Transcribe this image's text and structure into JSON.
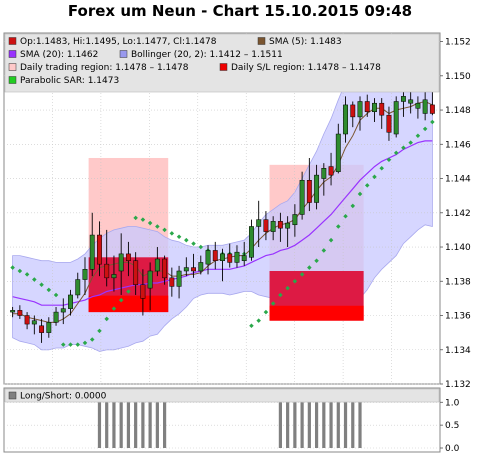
{
  "title": "Forex um Neun - Chart 15.10.2015 09:48",
  "colors": {
    "candle_up": "#2e8b2e",
    "candle_down": "#cc1111",
    "sma5": "#7a5530",
    "sma20": "#9933ff",
    "bollinger_fill": "#c8c8ff",
    "daily_range_fill": "#ffc9c9",
    "sl_region": "#dd1a44",
    "sl_region_low": "#ff0000",
    "sar": "#2aa84a",
    "longshort_bar": "#808080"
  },
  "legend": [
    {
      "label": "Op:1.1483, Hi:1.1495, Lo:1.1477, Cl:1.1478",
      "icon": "candle-swatch",
      "color": "#cc1111"
    },
    {
      "label": "SMA (5): 1.1483",
      "icon": "sma5-swatch",
      "color": "#7a5530"
    },
    {
      "label": "SMA (20): 1.1462",
      "icon": "sma20-swatch",
      "color": "#9933ff"
    },
    {
      "label": "Bollinger (20, 2): 1.1412 – 1.1511",
      "icon": "bollinger-swatch",
      "color": "#9999ee"
    },
    {
      "label": "Daily trading region: 1.1478 – 1.1478",
      "icon": "daily-region-swatch",
      "color": "#ffc9c9"
    },
    {
      "label": "Daily S/L region: 1.1478 – 1.1478",
      "icon": "sl-region-swatch",
      "color": "#ee0000"
    },
    {
      "label": "Parabolic SAR: 1.1473",
      "icon": "sar-swatch",
      "color": "#22cc22"
    }
  ],
  "sub_legend": {
    "label": "Long/Short: 0.0000",
    "icon": "longshort-swatch",
    "color": "#808080"
  },
  "chart_data": [
    {
      "type": "candlestick",
      "ylim": [
        1.132,
        1.1525
      ],
      "y_ticks": [
        "1.132",
        "1.134",
        "1.136",
        "1.138",
        "1.140",
        "1.142",
        "1.144",
        "1.146",
        "1.148",
        "1.150",
        "1.152"
      ],
      "y_tick_values": [
        1.132,
        1.134,
        1.136,
        1.138,
        1.14,
        1.142,
        1.144,
        1.146,
        1.148,
        1.15,
        1.152
      ],
      "candles": [
        [
          1.1362,
          1.1365,
          1.1359,
          1.1363
        ],
        [
          1.1363,
          1.1366,
          1.1358,
          1.136
        ],
        [
          1.136,
          1.1362,
          1.1352,
          1.1355
        ],
        [
          1.1355,
          1.136,
          1.1349,
          1.1357
        ],
        [
          1.1354,
          1.1358,
          1.1344,
          1.135
        ],
        [
          1.135,
          1.1359,
          1.1347,
          1.1356
        ],
        [
          1.1356,
          1.1365,
          1.1354,
          1.1362
        ],
        [
          1.1362,
          1.137,
          1.1355,
          1.1364
        ],
        [
          1.1364,
          1.1375,
          1.136,
          1.1372
        ],
        [
          1.1372,
          1.1385,
          1.137,
          1.1381
        ],
        [
          1.1381,
          1.1394,
          1.1372,
          1.1387
        ],
        [
          1.1387,
          1.142,
          1.1383,
          1.1407
        ],
        [
          1.1407,
          1.1415,
          1.1383,
          1.139
        ],
        [
          1.139,
          1.141,
          1.1377,
          1.1382
        ],
        [
          1.1382,
          1.1395,
          1.1374,
          1.1384
        ],
        [
          1.1386,
          1.1408,
          1.1372,
          1.1396
        ],
        [
          1.1396,
          1.1403,
          1.1383,
          1.1392
        ],
        [
          1.1392,
          1.1397,
          1.1372,
          1.1378
        ],
        [
          1.1378,
          1.1387,
          1.136,
          1.137
        ],
        [
          1.1376,
          1.1391,
          1.1363,
          1.1386
        ],
        [
          1.1386,
          1.14,
          1.1383,
          1.1393
        ],
        [
          1.1393,
          1.1395,
          1.1378,
          1.1382
        ],
        [
          1.1382,
          1.1388,
          1.1371,
          1.1377
        ],
        [
          1.1377,
          1.1389,
          1.137,
          1.1386
        ],
        [
          1.1386,
          1.1394,
          1.1383,
          1.1388
        ],
        [
          1.1388,
          1.1396,
          1.1382,
          1.1386
        ],
        [
          1.1386,
          1.1395,
          1.1384,
          1.1391
        ],
        [
          1.139,
          1.1401,
          1.1384,
          1.1398
        ],
        [
          1.1398,
          1.1403,
          1.1387,
          1.1392
        ],
        [
          1.1392,
          1.1399,
          1.138,
          1.1396
        ],
        [
          1.1396,
          1.1402,
          1.1388,
          1.1391
        ],
        [
          1.1391,
          1.1401,
          1.1388,
          1.1397
        ],
        [
          1.1392,
          1.1403,
          1.1389,
          1.1395
        ],
        [
          1.1394,
          1.1416,
          1.1392,
          1.1412
        ],
        [
          1.1412,
          1.1427,
          1.14,
          1.1416
        ],
        [
          1.1416,
          1.1421,
          1.1404,
          1.1409
        ],
        [
          1.1409,
          1.1418,
          1.1404,
          1.1415
        ],
        [
          1.1415,
          1.142,
          1.1403,
          1.1411
        ],
        [
          1.1411,
          1.1418,
          1.14,
          1.1414
        ],
        [
          1.1413,
          1.1425,
          1.1406,
          1.1419
        ],
        [
          1.1419,
          1.1444,
          1.1416,
          1.1439
        ],
        [
          1.1439,
          1.1452,
          1.1421,
          1.1426
        ],
        [
          1.1426,
          1.1448,
          1.1422,
          1.1442
        ],
        [
          1.144,
          1.1449,
          1.143,
          1.1446
        ],
        [
          1.1447,
          1.1455,
          1.1436,
          1.1442
        ],
        [
          1.1444,
          1.1472,
          1.1443,
          1.1466
        ],
        [
          1.1466,
          1.1488,
          1.1461,
          1.1483
        ],
        [
          1.1483,
          1.1485,
          1.147,
          1.1476
        ],
        [
          1.1476,
          1.1488,
          1.1468,
          1.1485
        ],
        [
          1.1485,
          1.1489,
          1.1476,
          1.1479
        ],
        [
          1.1479,
          1.1487,
          1.1473,
          1.1484
        ],
        [
          1.1484,
          1.1487,
          1.1469,
          1.1477
        ],
        [
          1.1477,
          1.1482,
          1.1462,
          1.1467
        ],
        [
          1.1466,
          1.1488,
          1.1464,
          1.1485
        ],
        [
          1.1485,
          1.1491,
          1.1476,
          1.1488
        ],
        [
          1.1484,
          1.1492,
          1.1478,
          1.1486
        ],
        [
          1.1481,
          1.1488,
          1.1475,
          1.1484
        ],
        [
          1.1478,
          1.1492,
          1.1474,
          1.1486
        ],
        [
          1.1483,
          1.1495,
          1.1477,
          1.1478
        ]
      ],
      "sma5": [
        1.1361,
        1.1361,
        1.1359,
        1.1358,
        1.1357,
        1.1356,
        1.1356,
        1.1358,
        1.1361,
        1.1367,
        1.1373,
        1.1382,
        1.1388,
        1.1389,
        1.139,
        1.1391,
        1.1391,
        1.1389,
        1.1383,
        1.1385,
        1.1386,
        1.1386,
        1.1383,
        1.1383,
        1.1384,
        1.1384,
        1.1385,
        1.1389,
        1.1392,
        1.1393,
        1.1394,
        1.1395,
        1.1395,
        1.1399,
        1.1404,
        1.1408,
        1.1411,
        1.1413,
        1.1414,
        1.1416,
        1.1422,
        1.1427,
        1.1433,
        1.1438,
        1.1441,
        1.1448,
        1.1458,
        1.1465,
        1.1474,
        1.1478,
        1.1481,
        1.1481,
        1.1478,
        1.148,
        1.1481,
        1.1482,
        1.1484,
        1.1485,
        1.1483
      ],
      "sma20": [
        1.1371,
        1.137,
        1.1369,
        1.1368,
        1.1366,
        1.1366,
        1.1366,
        1.1366,
        1.1367,
        1.1368,
        1.1369,
        1.1371,
        1.1372,
        1.1374,
        1.1375,
        1.1376,
        1.1377,
        1.1378,
        1.1378,
        1.1379,
        1.1379,
        1.138,
        1.1381,
        1.1382,
        1.1383,
        1.1385,
        1.1386,
        1.1387,
        1.1387,
        1.1387,
        1.1387,
        1.1388,
        1.1389,
        1.1391,
        1.1393,
        1.1395,
        1.1396,
        1.1398,
        1.1399,
        1.1401,
        1.1404,
        1.1407,
        1.1411,
        1.1415,
        1.1419,
        1.1424,
        1.1429,
        1.1434,
        1.1439,
        1.1443,
        1.1447,
        1.145,
        1.1452,
        1.1454,
        1.1457,
        1.1459,
        1.1461,
        1.1462,
        1.1462
      ],
      "bollinger_upper": [
        1.1395,
        1.1395,
        1.1394,
        1.1393,
        1.1392,
        1.1392,
        1.1391,
        1.1391,
        1.1391,
        1.1393,
        1.1396,
        1.1401,
        1.1405,
        1.1408,
        1.141,
        1.1411,
        1.1412,
        1.1412,
        1.1411,
        1.141,
        1.1409,
        1.1406,
        1.1404,
        1.1403,
        1.1401,
        1.14,
        1.14,
        1.1401,
        1.1401,
        1.1401,
        1.1402,
        1.1403,
        1.1404,
        1.1408,
        1.1414,
        1.1419,
        1.1422,
        1.1425,
        1.1427,
        1.1432,
        1.144,
        1.1448,
        1.1456,
        1.1466,
        1.1475,
        1.1486,
        1.1496,
        1.1503,
        1.1508,
        1.1511,
        1.1512,
        1.1513,
        1.1513,
        1.1513,
        1.1512,
        1.1512,
        1.1512,
        1.1511,
        1.1511
      ],
      "bollinger_lower": [
        1.1347,
        1.1345,
        1.1344,
        1.1343,
        1.134,
        1.134,
        1.1341,
        1.1341,
        1.1343,
        1.1343,
        1.1342,
        1.1341,
        1.1339,
        1.134,
        1.134,
        1.1341,
        1.1342,
        1.1344,
        1.1345,
        1.1348,
        1.1349,
        1.1354,
        1.1358,
        1.1361,
        1.1365,
        1.137,
        1.1372,
        1.1373,
        1.1373,
        1.1373,
        1.1372,
        1.1373,
        1.1374,
        1.1374,
        1.1372,
        1.1371,
        1.137,
        1.1371,
        1.1371,
        1.137,
        1.1368,
        1.1366,
        1.1366,
        1.1364,
        1.1363,
        1.1362,
        1.1362,
        1.1365,
        1.137,
        1.1375,
        1.1382,
        1.1387,
        1.1391,
        1.1395,
        1.1402,
        1.1406,
        1.141,
        1.1413,
        1.1412
      ],
      "sar": [
        1.1388,
        1.1386,
        1.1384,
        1.1381,
        1.1378,
        1.1375,
        1.1372,
        1.1343,
        1.1343,
        1.1343,
        1.1344,
        1.1346,
        1.1351,
        1.1358,
        1.1364,
        1.1369,
        1.1374,
        1.1417,
        1.1416,
        1.1414,
        1.1412,
        1.141,
        1.1408,
        1.1406,
        1.1404,
        1.1402,
        1.14,
        1.1398,
        1.1397,
        1.1396,
        1.1396,
        1.1396,
        1.1396,
        1.1354,
        1.1357,
        1.1362,
        1.1367,
        1.1372,
        1.1376,
        1.138,
        1.1384,
        1.1388,
        1.1392,
        1.1398,
        1.1404,
        1.1412,
        1.1418,
        1.1424,
        1.1431,
        1.1436,
        1.1441,
        1.1446,
        1.1451,
        1.1455,
        1.1458,
        1.1461,
        1.1465,
        1.1469,
        1.1473
      ],
      "daily_trading_regions": [
        {
          "from": 11,
          "to": 21,
          "low": 1.1362,
          "high": 1.1452
        },
        {
          "from": 36,
          "to": 48,
          "low": 1.1357,
          "high": 1.1448
        }
      ],
      "daily_sl_regions": [
        {
          "from": 11,
          "to": 21,
          "low": 1.1362,
          "high": 1.1394
        },
        {
          "from": 36,
          "to": 48,
          "low": 1.1357,
          "high": 1.1386
        }
      ]
    },
    {
      "type": "bar",
      "ylim": [
        0,
        1.05
      ],
      "y_ticks": [
        "0.0",
        "0.5",
        "1.0"
      ],
      "y_tick_values": [
        0,
        0.5,
        1.0
      ],
      "values": [
        0,
        0,
        0,
        0,
        0,
        0,
        0,
        0,
        0,
        0,
        0,
        0,
        1,
        1,
        1,
        1,
        1,
        1,
        1,
        1,
        1,
        1,
        0,
        0,
        0,
        0,
        0,
        0,
        0,
        0,
        0,
        0,
        0,
        0,
        0,
        0,
        0,
        1,
        1,
        1,
        1,
        1,
        1,
        1,
        1,
        1,
        1,
        1,
        1,
        0,
        0,
        0,
        0,
        0,
        0,
        0,
        0,
        0,
        0
      ]
    }
  ]
}
